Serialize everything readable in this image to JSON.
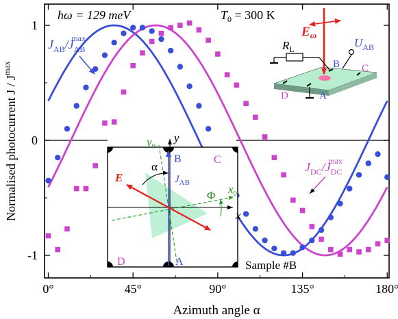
{
  "chart_data": {
    "type": "scatter",
    "xlabel": "Azimuth angle α",
    "ylabel": "Normalised photocurrent J / J",
    "ylabel_sup": "max",
    "xlim": [
      -2,
      181
    ],
    "ylim": [
      -1.2,
      1.1
    ],
    "xticks": [
      0,
      45,
      90,
      135,
      180
    ],
    "xtick_labels": [
      "0°",
      "45°",
      "90°",
      "135°",
      "180°"
    ],
    "yticks": [
      1,
      0,
      -1
    ],
    "ytick_labels": [
      "1",
      "0",
      "-1"
    ],
    "annotations": {
      "photon_energy": "ħω = 129 meV",
      "temperature_lhs": "T",
      "temperature_sub": "0",
      "temperature_rhs": " = 300 K",
      "sample": "Sample #B"
    },
    "series": [
      {
        "name": "J_AB / J_AB^max",
        "label_main": "J",
        "label_sub": "AB",
        "label_slash": "/J",
        "label_sub2": "AB",
        "label_sup": "max",
        "color": "#3a4fd9",
        "marker": "circle",
        "x": [
          0,
          5,
          10,
          15,
          20,
          25,
          30,
          35,
          40,
          45,
          50,
          55,
          60,
          65,
          70,
          75,
          80,
          85,
          90,
          95,
          100,
          105,
          110,
          115,
          120,
          125,
          130,
          135,
          140,
          145,
          150,
          155,
          160,
          165,
          170,
          175,
          180
        ],
        "y": [
          -0.35,
          -0.15,
          0.1,
          0.3,
          0.46,
          0.62,
          0.74,
          0.85,
          0.93,
          0.98,
          0.98,
          0.95,
          0.88,
          0.78,
          0.64,
          0.47,
          0.3,
          0.1,
          -0.1,
          -0.3,
          -0.48,
          -0.64,
          -0.77,
          -0.87,
          -0.94,
          -0.98,
          -0.98,
          -0.93,
          -0.87,
          -0.78,
          -0.67,
          -0.55,
          -0.42,
          -0.3,
          -0.2,
          -0.12,
          -0.32
        ],
        "fit": {
          "amplitude": 1.0,
          "period_deg": 180,
          "phase_deg": -10
        }
      },
      {
        "name": "J_DC / J_DC^max",
        "label_main": "J",
        "label_sub": "DC",
        "label_slash": "/J",
        "label_sub2": "DC",
        "label_sup": "max",
        "color": "#cc44cc",
        "marker": "square",
        "x": [
          0,
          5,
          10,
          15,
          20,
          25,
          30,
          35,
          40,
          45,
          50,
          55,
          60,
          65,
          70,
          75,
          80,
          85,
          90,
          95,
          100,
          105,
          110,
          115,
          120,
          125,
          130,
          135,
          140,
          145,
          150,
          155,
          160,
          165,
          170,
          175,
          180
        ],
        "y": [
          -0.83,
          -0.95,
          -0.77,
          -0.42,
          -0.42,
          -0.22,
          0.15,
          0.16,
          0.42,
          0.65,
          0.76,
          0.86,
          0.93,
          0.98,
          1.0,
          1.02,
          0.96,
          0.87,
          0.75,
          0.57,
          0.48,
          0.32,
          0.2,
          0.03,
          -0.15,
          -0.3,
          -0.52,
          -0.61,
          -0.75,
          -0.86,
          -0.95,
          -0.99,
          -0.95,
          -0.97,
          -0.95,
          -0.9,
          -0.87
        ],
        "fit": {
          "amplitude": 1.0,
          "period_deg": 180,
          "phase_deg": 12
        }
      }
    ],
    "inset_top": {
      "field": "E",
      "field_sub": "ω",
      "voltage": "U",
      "voltage_sub": "AB",
      "resistor": "R",
      "resistor_sub": "L",
      "contacts": [
        "B",
        "C",
        "D",
        "A"
      ]
    },
    "inset_sample": {
      "corners": [
        "B",
        "C",
        "D",
        "A"
      ],
      "field": "E",
      "current": "J",
      "current_sub": "AB",
      "angle_alpha": "α",
      "angle_phi": "Φ",
      "axis_x": "x",
      "axis_y": "y",
      "axis_x0": "x",
      "axis_x0_sub": "0",
      "axis_y0": "y",
      "axis_y0_sub": "0"
    }
  }
}
